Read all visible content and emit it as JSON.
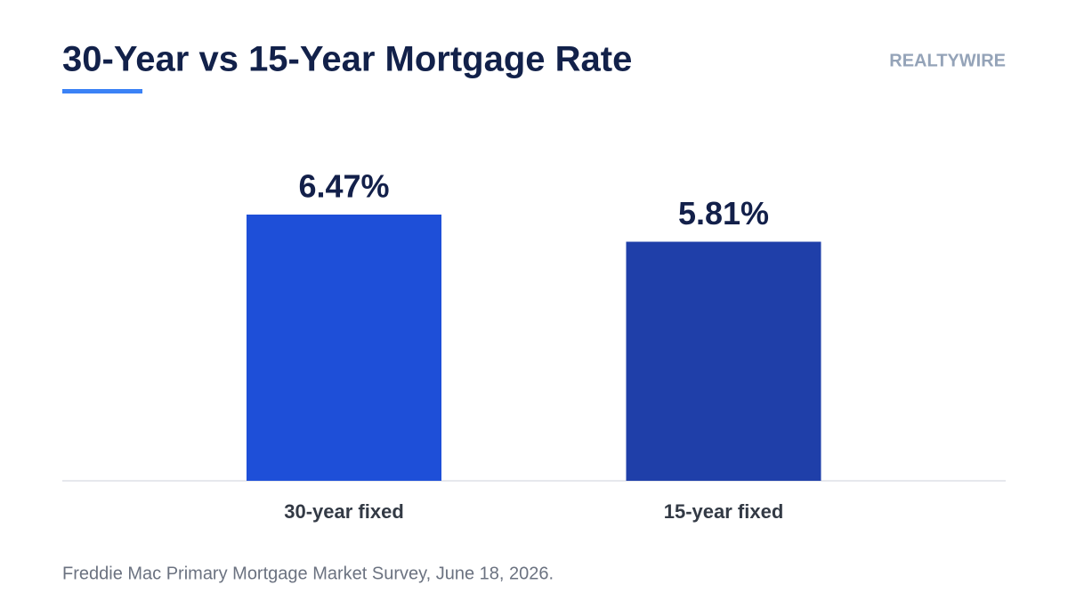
{
  "chart_data": {
    "type": "bar",
    "title": "30-Year vs 15-Year Mortgage Rate",
    "brand": "REALTYWIRE",
    "source": "Freddie Mac Primary Mortgage Market Survey, June 18, 2026.",
    "categories": [
      "30-year fixed",
      "15-year fixed"
    ],
    "values": [
      6.47,
      5.81
    ],
    "value_labels": [
      "6.47%",
      "5.81%"
    ],
    "colors": [
      "#1e4fd8",
      "#1f3fa9"
    ]
  }
}
